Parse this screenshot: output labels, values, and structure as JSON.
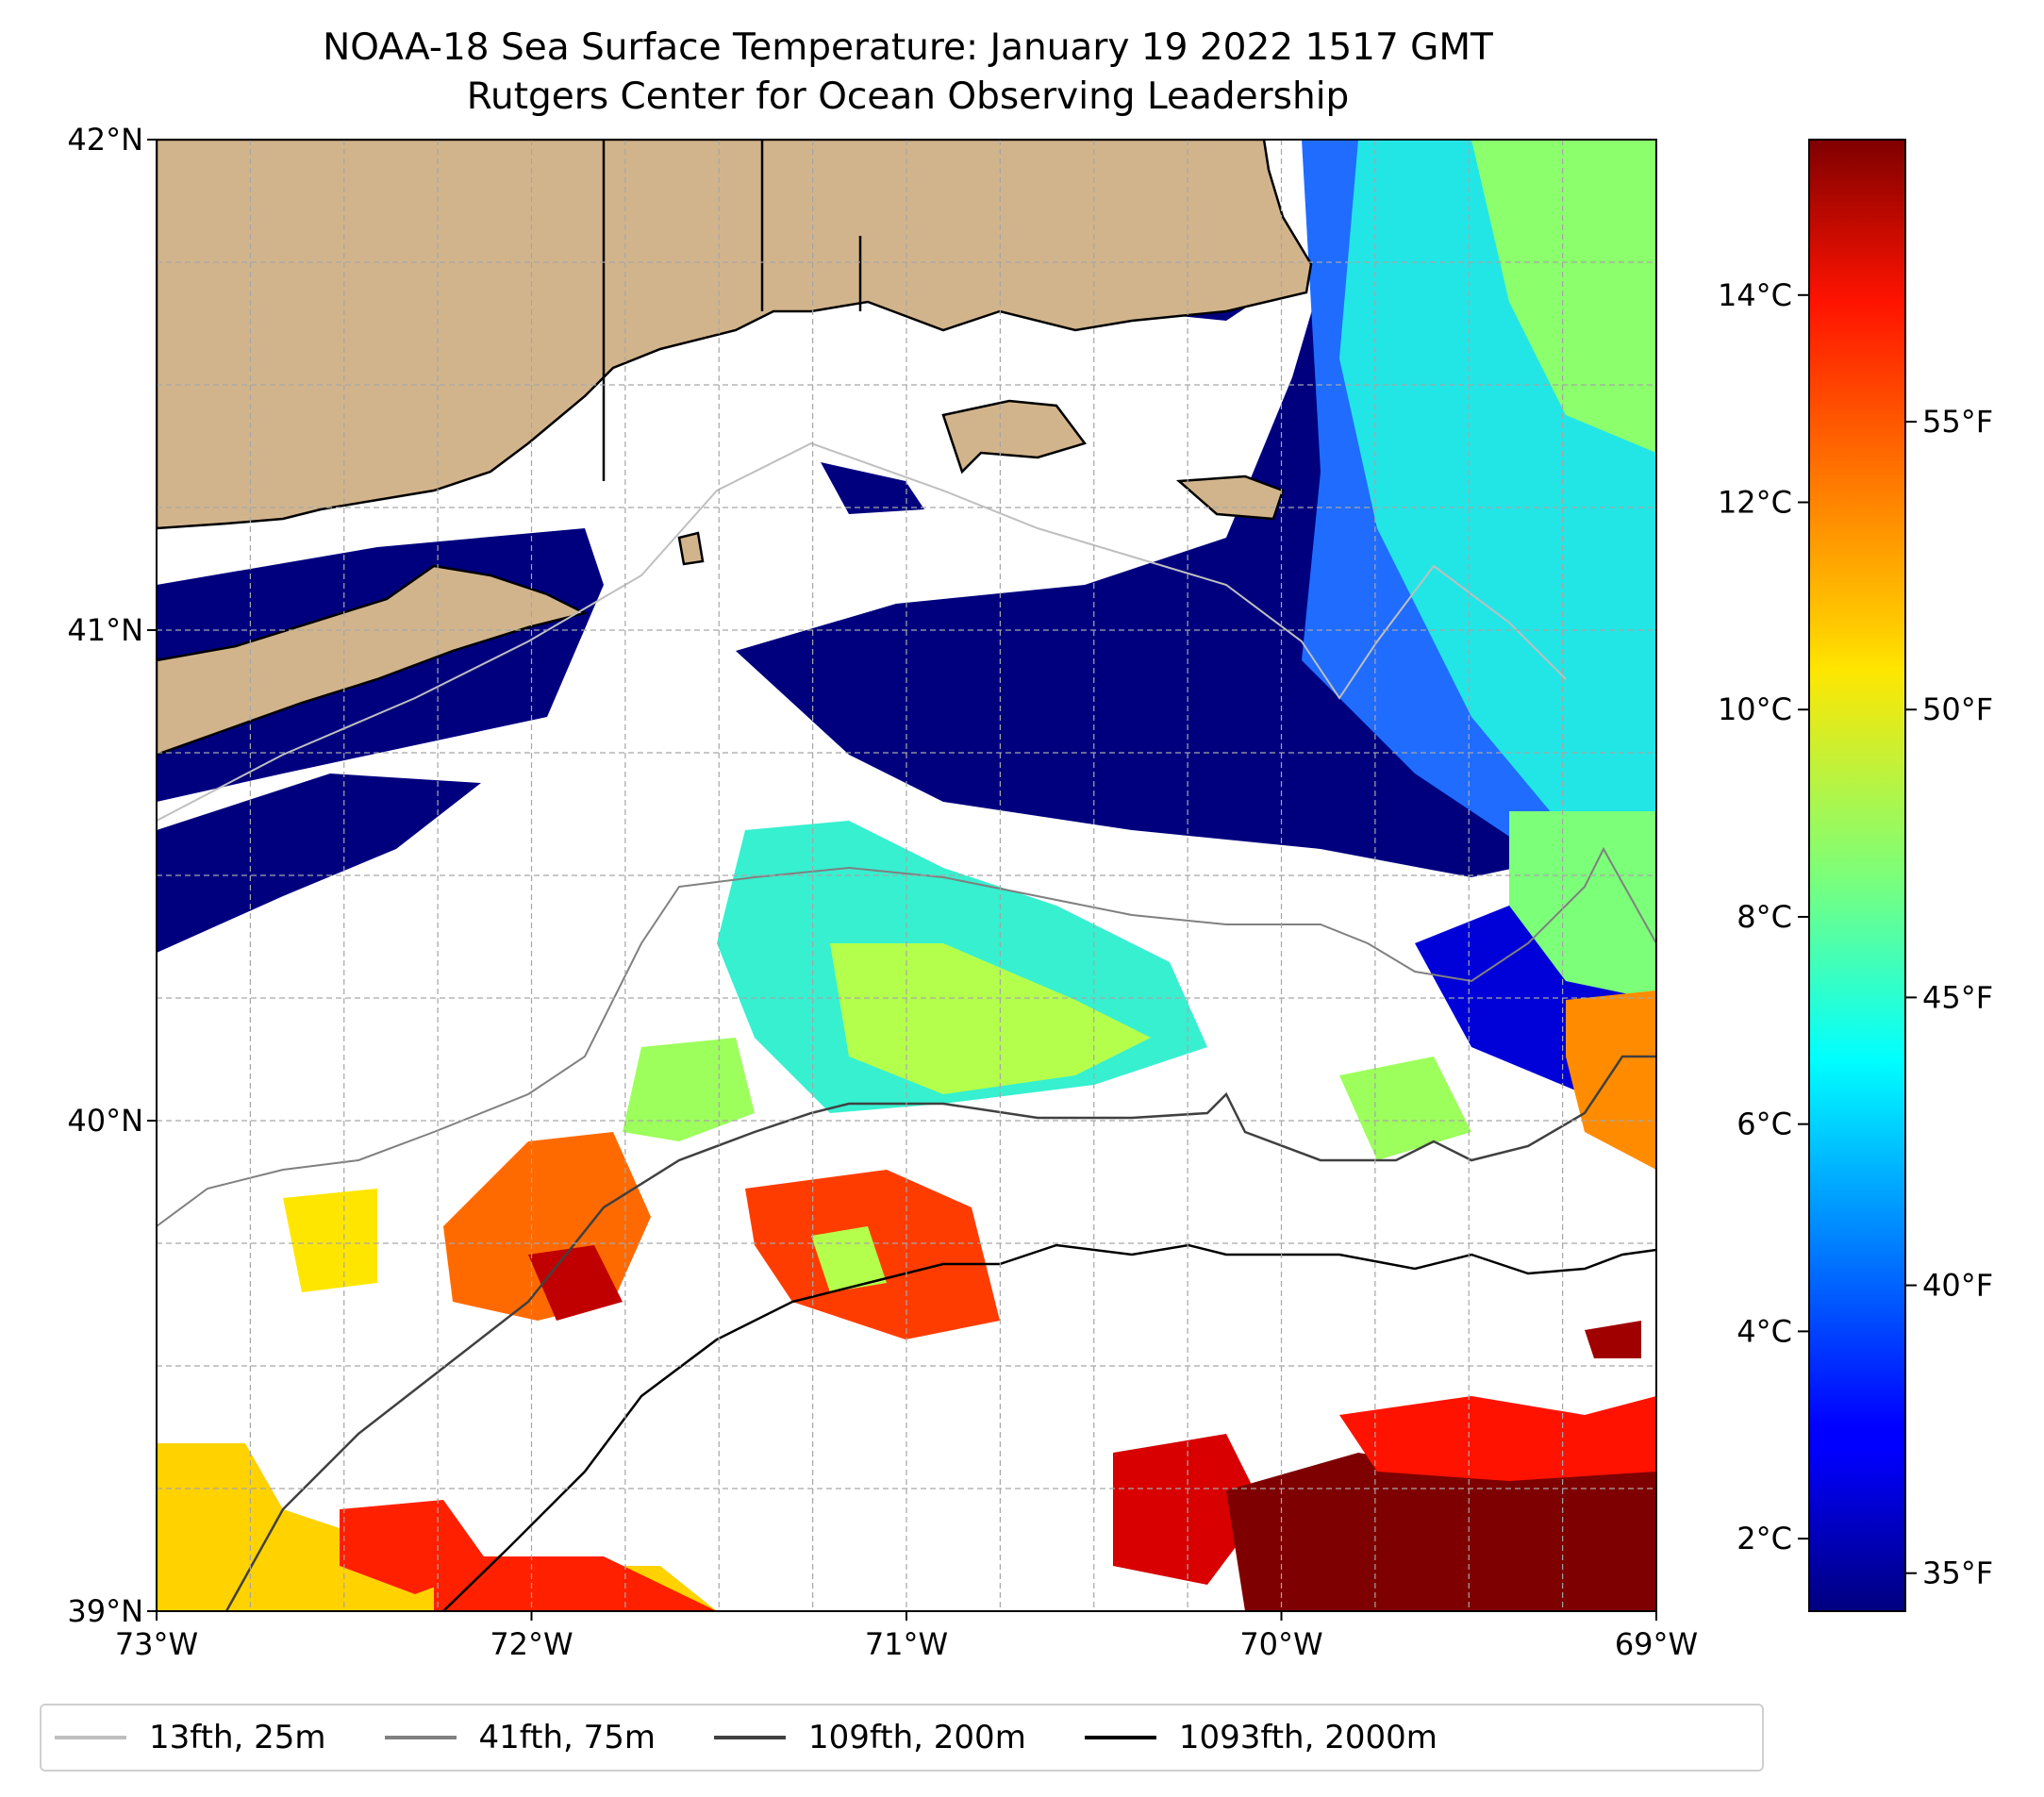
{
  "title": {
    "line1": "NOAA-18 Sea Surface Temperature: January 19 2022 1517 GMT",
    "line2": "Rutgers Center for Ocean Observing Leadership"
  },
  "map": {
    "lon_range": [
      -73,
      -69
    ],
    "lat_range": [
      39,
      42
    ],
    "grid": true,
    "x_ticks": [
      {
        "value": -73,
        "label": "73°W"
      },
      {
        "value": -72,
        "label": "72°W"
      },
      {
        "value": -71,
        "label": "71°W"
      },
      {
        "value": -70,
        "label": "70°W"
      },
      {
        "value": -69,
        "label": "69°W"
      }
    ],
    "y_ticks": [
      {
        "value": 42,
        "label": "42°N"
      },
      {
        "value": 41,
        "label": "41°N"
      },
      {
        "value": 40,
        "label": "40°N"
      },
      {
        "value": 39,
        "label": "39°N"
      }
    ],
    "colors": {
      "land": "#d2b48c",
      "cloud_mask": "#ffffff",
      "coast": "#000000"
    }
  },
  "colorbar": {
    "colormap": "jet",
    "celsius_ticks": [
      {
        "value": 2,
        "label": "2°C"
      },
      {
        "value": 4,
        "label": "4°C"
      },
      {
        "value": 6,
        "label": "6°C"
      },
      {
        "value": 8,
        "label": "8°C"
      },
      {
        "value": 10,
        "label": "10°C"
      },
      {
        "value": 12,
        "label": "12°C"
      },
      {
        "value": 14,
        "label": "14°C"
      }
    ],
    "fahrenheit_ticks": [
      {
        "value": 35,
        "label": "35°F"
      },
      {
        "value": 40,
        "label": "40°F"
      },
      {
        "value": 45,
        "label": "45°F"
      },
      {
        "value": 50,
        "label": "50°F"
      },
      {
        "value": 55,
        "label": "55°F"
      }
    ],
    "range_c": [
      1.3,
      15.5
    ]
  },
  "legend": {
    "placement": "bottom",
    "items": [
      {
        "label": "13fth, 25m",
        "color": "#bfbfbf"
      },
      {
        "label": "41fth, 75m",
        "color": "#808080"
      },
      {
        "label": "109fth, 200m",
        "color": "#404040"
      },
      {
        "label": "1093fth, 2000m",
        "color": "#000000"
      }
    ]
  }
}
